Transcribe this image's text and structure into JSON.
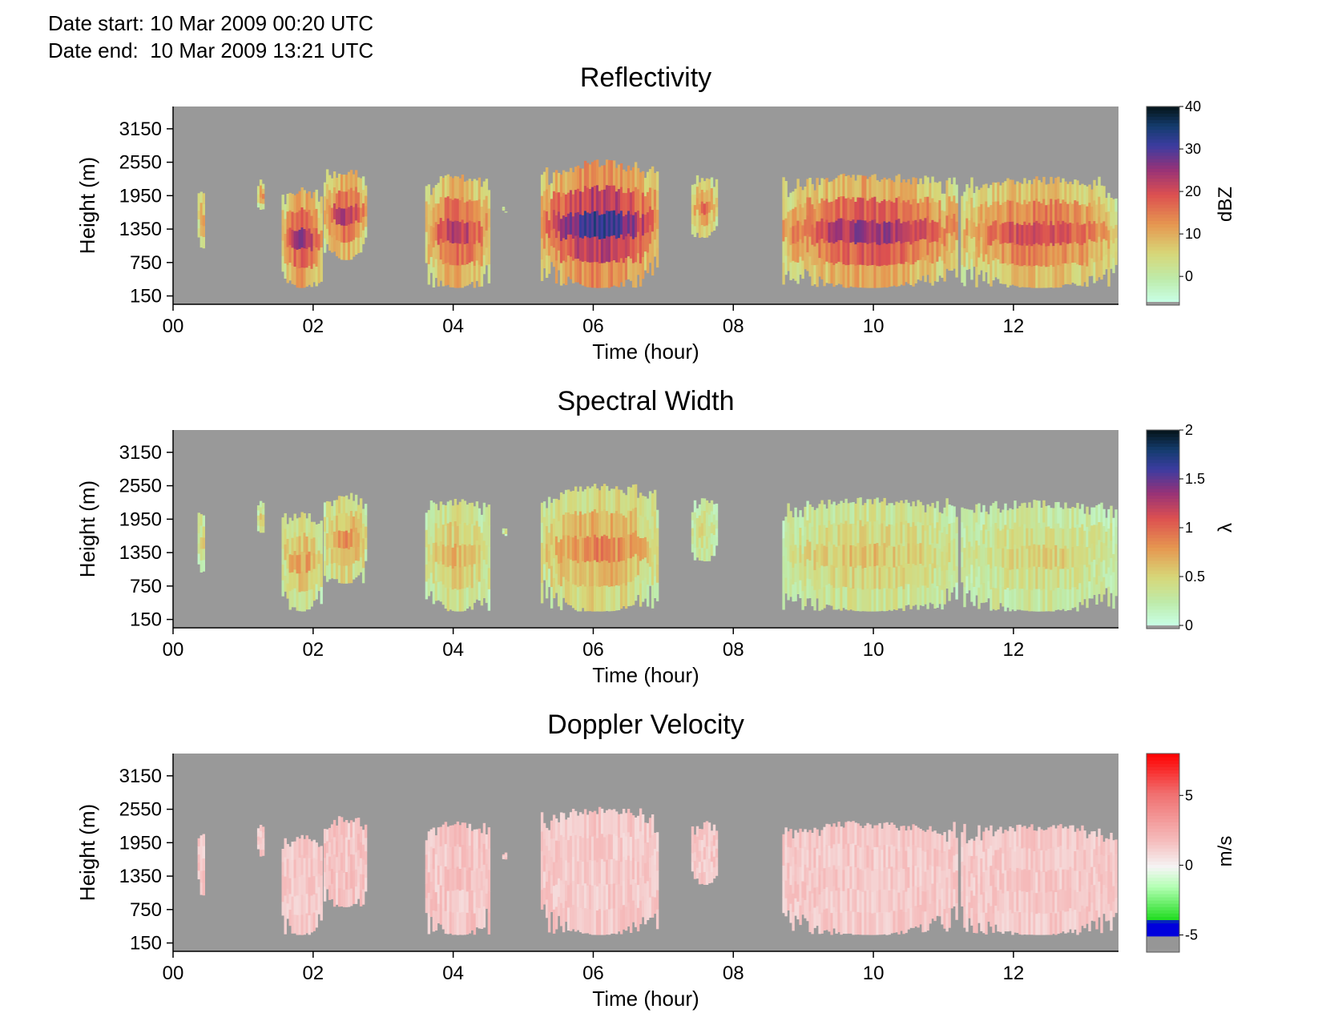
{
  "header": {
    "date_start": "Date start: 10 Mar 2009 00:20 UTC",
    "date_end": "Date end:  10 Mar 2009 13:21 UTC"
  },
  "chart_data": [
    {
      "type": "heatmap",
      "title": "Reflectivity",
      "xlabel": "Time (hour)",
      "ylabel": "Height (m)",
      "xlim": [
        0,
        13.5
      ],
      "ylim": [
        0,
        3550
      ],
      "x_ticks": [
        "00",
        "02",
        "04",
        "06",
        "08",
        "10",
        "12"
      ],
      "y_ticks": [
        "150",
        "750",
        "1350",
        "1950",
        "2550",
        "3150"
      ],
      "background_color": "#999999",
      "colorbar": {
        "unit": "dBZ",
        "range": [
          -6,
          40
        ],
        "ticks": [
          "0",
          "10",
          "20",
          "30",
          "40"
        ]
      },
      "cloud_layers": [
        {
          "t_start": 0.35,
          "t_end": 0.45,
          "z_bottom": 1000,
          "z_top": 2150,
          "intensity": 0.35
        },
        {
          "t_start": 1.2,
          "t_end": 1.3,
          "z_bottom": 1700,
          "z_top": 2300,
          "intensity": 0.35
        },
        {
          "t_start": 1.55,
          "t_end": 2.1,
          "z_bottom": 300,
          "z_top": 2100,
          "intensity": 0.6
        },
        {
          "t_start": 2.15,
          "t_end": 2.75,
          "z_bottom": 800,
          "z_top": 2450,
          "intensity": 0.55
        },
        {
          "t_start": 3.6,
          "t_end": 4.5,
          "z_bottom": 300,
          "z_top": 2350,
          "intensity": 0.55
        },
        {
          "t_start": 4.7,
          "t_end": 4.75,
          "z_bottom": 1650,
          "z_top": 1800,
          "intensity": 0.2
        },
        {
          "t_start": 5.25,
          "t_end": 6.9,
          "z_bottom": 300,
          "z_top": 2600,
          "intensity": 0.75
        },
        {
          "t_start": 7.4,
          "t_end": 7.75,
          "z_bottom": 1200,
          "z_top": 2350,
          "intensity": 0.4
        },
        {
          "t_start": 8.7,
          "t_end": 11.2,
          "z_bottom": 300,
          "z_top": 2350,
          "intensity": 0.6
        },
        {
          "t_start": 11.25,
          "t_end": 13.45,
          "z_bottom": 300,
          "z_top": 2300,
          "intensity": 0.5
        }
      ]
    },
    {
      "type": "heatmap",
      "title": "Spectral Width",
      "xlabel": "Time (hour)",
      "ylabel": "Height (m)",
      "xlim": [
        0,
        13.5
      ],
      "ylim": [
        0,
        3550
      ],
      "x_ticks": [
        "00",
        "02",
        "04",
        "06",
        "08",
        "10",
        "12"
      ],
      "y_ticks": [
        "150",
        "750",
        "1350",
        "1950",
        "2550",
        "3150"
      ],
      "background_color": "#999999",
      "colorbar": {
        "unit": "λ",
        "range": [
          0,
          2
        ],
        "ticks": [
          "0",
          "0.5",
          "1",
          "1.5",
          "2"
        ]
      },
      "cloud_layers": [
        {
          "t_start": 0.35,
          "t_end": 0.45,
          "z_bottom": 1000,
          "z_top": 2150,
          "intensity": 0.18
        },
        {
          "t_start": 1.2,
          "t_end": 1.3,
          "z_bottom": 1700,
          "z_top": 2300,
          "intensity": 0.18
        },
        {
          "t_start": 1.55,
          "t_end": 2.1,
          "z_bottom": 300,
          "z_top": 2100,
          "intensity": 0.3
        },
        {
          "t_start": 2.15,
          "t_end": 2.75,
          "z_bottom": 800,
          "z_top": 2450,
          "intensity": 0.32
        },
        {
          "t_start": 3.6,
          "t_end": 4.5,
          "z_bottom": 300,
          "z_top": 2350,
          "intensity": 0.25
        },
        {
          "t_start": 4.7,
          "t_end": 4.75,
          "z_bottom": 1650,
          "z_top": 1800,
          "intensity": 0.12
        },
        {
          "t_start": 5.25,
          "t_end": 6.9,
          "z_bottom": 300,
          "z_top": 2600,
          "intensity": 0.35
        },
        {
          "t_start": 7.4,
          "t_end": 7.75,
          "z_bottom": 1200,
          "z_top": 2350,
          "intensity": 0.15
        },
        {
          "t_start": 8.7,
          "t_end": 11.2,
          "z_bottom": 300,
          "z_top": 2350,
          "intensity": 0.22
        },
        {
          "t_start": 11.25,
          "t_end": 13.45,
          "z_bottom": 300,
          "z_top": 2300,
          "intensity": 0.18
        }
      ]
    },
    {
      "type": "heatmap",
      "title": "Doppler Velocity",
      "xlabel": "Time (hour)",
      "ylabel": "Height (m)",
      "xlim": [
        0,
        13.5
      ],
      "ylim": [
        0,
        3550
      ],
      "x_ticks": [
        "00",
        "02",
        "04",
        "06",
        "08",
        "10",
        "12"
      ],
      "y_ticks": [
        "150",
        "750",
        "1350",
        "1950",
        "2550",
        "3150"
      ],
      "background_color": "#999999",
      "colorbar": {
        "unit": "m/s",
        "range": [
          -6,
          8
        ],
        "ticks": [
          "-5",
          "0",
          "5"
        ]
      },
      "cloud_layers": [
        {
          "t_start": 0.35,
          "t_end": 0.45,
          "z_bottom": 1000,
          "z_top": 2150,
          "intensity": 0.3
        },
        {
          "t_start": 1.2,
          "t_end": 1.3,
          "z_bottom": 1700,
          "z_top": 2300,
          "intensity": 0.25
        },
        {
          "t_start": 1.55,
          "t_end": 2.1,
          "z_bottom": 300,
          "z_top": 2100,
          "intensity": 0.25
        },
        {
          "t_start": 2.15,
          "t_end": 2.75,
          "z_bottom": 800,
          "z_top": 2450,
          "intensity": 0.3
        },
        {
          "t_start": 3.6,
          "t_end": 4.5,
          "z_bottom": 300,
          "z_top": 2350,
          "intensity": 0.3
        },
        {
          "t_start": 4.7,
          "t_end": 4.75,
          "z_bottom": 1650,
          "z_top": 1800,
          "intensity": 0.2
        },
        {
          "t_start": 5.25,
          "t_end": 6.9,
          "z_bottom": 300,
          "z_top": 2600,
          "intensity": 0.25
        },
        {
          "t_start": 7.4,
          "t_end": 7.75,
          "z_bottom": 1200,
          "z_top": 2350,
          "intensity": 0.25
        },
        {
          "t_start": 8.7,
          "t_end": 11.2,
          "z_bottom": 300,
          "z_top": 2350,
          "intensity": 0.25
        },
        {
          "t_start": 11.25,
          "t_end": 13.45,
          "z_bottom": 300,
          "z_top": 2300,
          "intensity": 0.25
        }
      ]
    }
  ]
}
